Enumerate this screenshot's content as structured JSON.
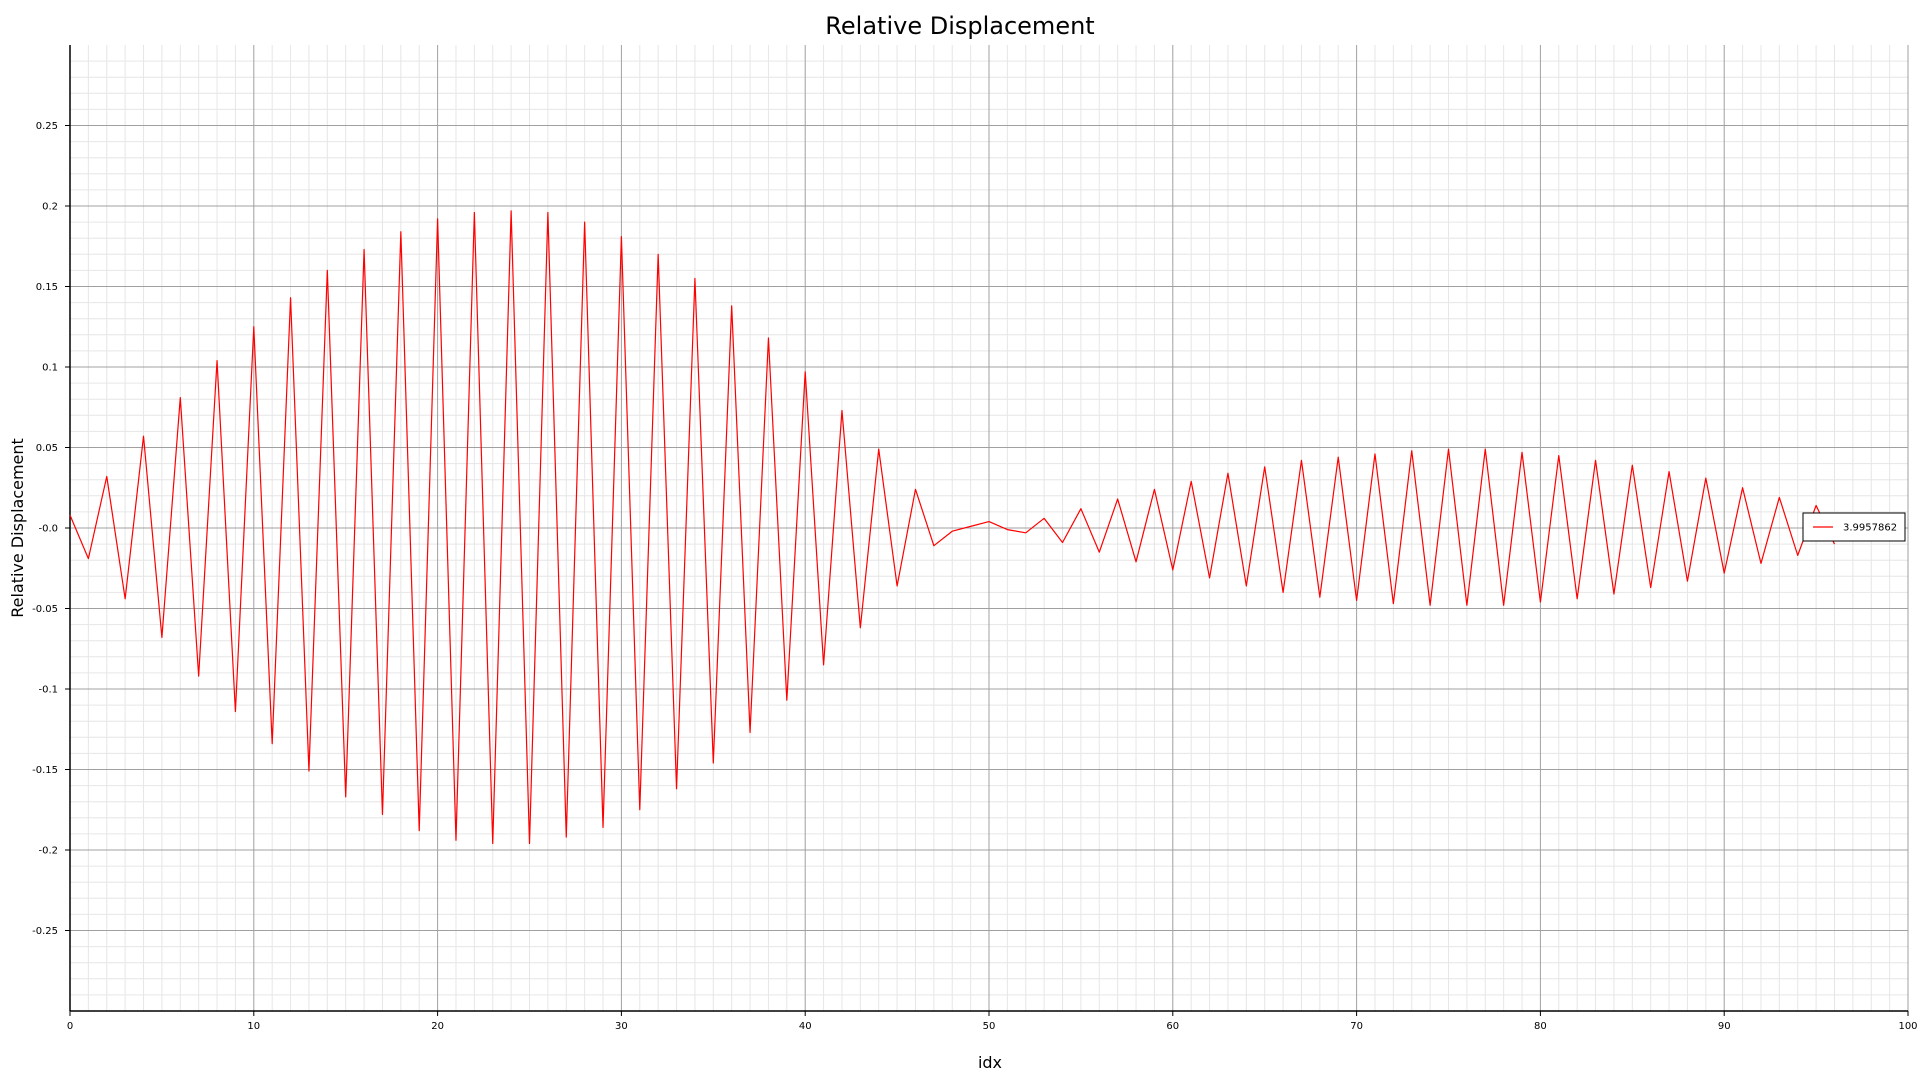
{
  "chart_data": {
    "type": "line",
    "title": "Relative Displacement",
    "xlabel": "idx",
    "ylabel": "Relative Displacement",
    "xlim": [
      0,
      100
    ],
    "ylim": [
      -0.3,
      0.3
    ],
    "x_ticks": [
      0,
      10,
      20,
      30,
      40,
      50,
      60,
      70,
      80,
      90,
      100
    ],
    "x_tick_labels": [
      "0",
      "10",
      "20",
      "30",
      "40",
      "50",
      "60",
      "70",
      "80",
      "90",
      "100"
    ],
    "y_ticks": [
      0.25,
      0.2,
      0.15,
      0.1,
      0.05,
      0.0,
      -0.05,
      -0.1,
      -0.15,
      -0.2,
      -0.25
    ],
    "y_tick_labels": [
      "0.25",
      "0.2",
      "0.15",
      "0.1",
      "0.05",
      "-0.0",
      "-0.05",
      "-0.1",
      "-0.15",
      "-0.2",
      "-0.25"
    ],
    "grid": true,
    "minor_grid": true,
    "legend_position": "right",
    "series": [
      {
        "name": "3.9957862",
        "color": "#ff0000",
        "x": [
          0,
          1,
          2,
          3,
          4,
          5,
          6,
          7,
          8,
          9,
          10,
          11,
          12,
          13,
          14,
          15,
          16,
          17,
          18,
          19,
          20,
          21,
          22,
          23,
          24,
          25,
          26,
          27,
          28,
          29,
          30,
          31,
          32,
          33,
          34,
          35,
          36,
          37,
          38,
          39,
          40,
          41,
          42,
          43,
          44,
          45,
          46,
          47,
          48,
          49,
          50,
          51,
          52,
          53,
          54,
          55,
          56,
          57,
          58,
          59,
          60,
          61,
          62,
          63,
          64,
          65,
          66,
          67,
          68,
          69,
          70,
          71,
          72,
          73,
          74,
          75,
          76,
          77,
          78,
          79,
          80,
          81,
          82,
          83,
          84,
          85,
          86,
          87,
          88,
          89,
          90,
          91,
          92,
          93,
          94,
          95,
          96
        ],
        "values": [
          0.008,
          -0.019,
          0.032,
          -0.044,
          0.057,
          -0.068,
          0.081,
          -0.092,
          0.104,
          -0.114,
          0.125,
          -0.134,
          0.143,
          -0.151,
          0.16,
          -0.167,
          0.173,
          -0.178,
          0.184,
          -0.188,
          0.192,
          -0.194,
          0.196,
          -0.196,
          0.197,
          -0.196,
          0.196,
          -0.192,
          0.19,
          -0.186,
          0.181,
          -0.175,
          0.17,
          -0.162,
          0.155,
          -0.146,
          0.138,
          -0.127,
          0.118,
          -0.107,
          0.097,
          -0.085,
          0.073,
          -0.062,
          0.049,
          -0.036,
          0.024,
          -0.011,
          -0.002,
          0.001,
          0.004,
          -0.001,
          -0.003,
          0.006,
          -0.009,
          0.012,
          -0.015,
          0.018,
          -0.021,
          0.024,
          -0.026,
          0.029,
          -0.031,
          0.034,
          -0.036,
          0.038,
          -0.04,
          0.042,
          -0.043,
          0.044,
          -0.045,
          0.046,
          -0.047,
          0.048,
          -0.048,
          0.049,
          -0.048,
          0.049,
          -0.048,
          0.047,
          -0.046,
          0.045,
          -0.044,
          0.042,
          -0.041,
          0.039,
          -0.037,
          0.035,
          -0.033,
          0.031,
          -0.028,
          0.025,
          -0.022,
          0.019,
          -0.017,
          0.014,
          -0.01
        ]
      }
    ]
  }
}
